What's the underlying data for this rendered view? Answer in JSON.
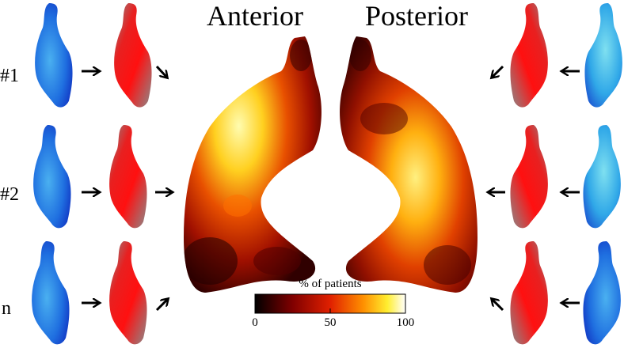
{
  "titles": {
    "anterior": "Anterior",
    "posterior": "Posterior"
  },
  "rows": [
    "#1",
    "#2",
    "n"
  ],
  "colorbar": {
    "label": "% of patients",
    "ticks": [
      0,
      50,
      100
    ]
  }
}
